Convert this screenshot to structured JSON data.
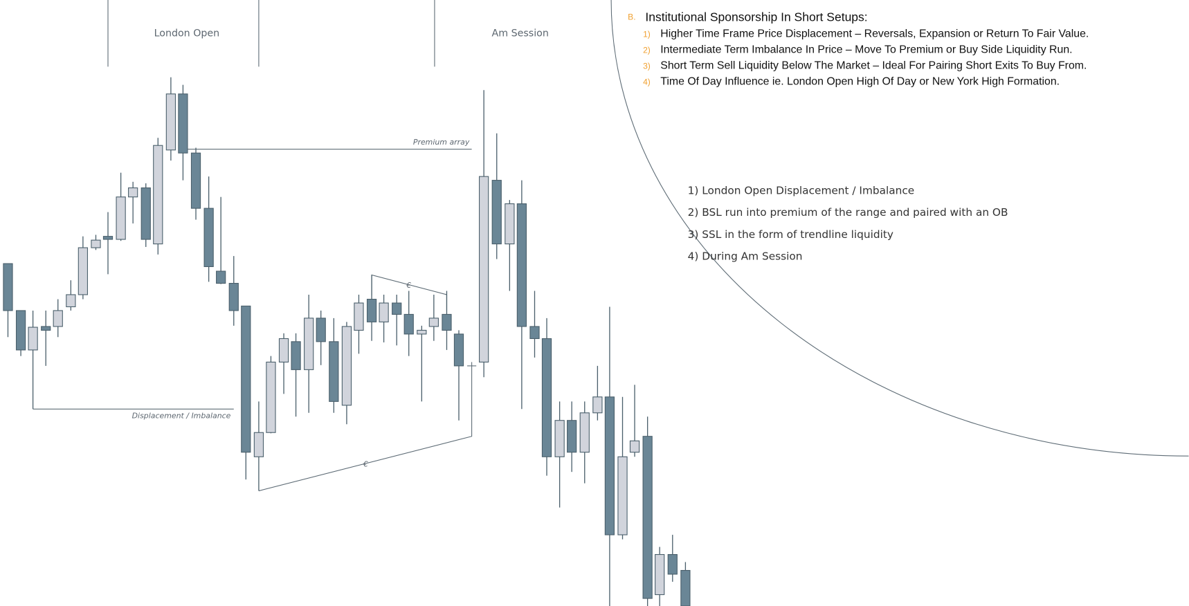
{
  "labels": {
    "london_open": "London Open",
    "am_session": "Am Session",
    "premium_array": "Premium array",
    "displacement": "Displacement / Imbalance",
    "euro_top": "€",
    "euro_bottom": "€"
  },
  "setups": {
    "marker": "B.",
    "title": "Institutional Sponsorship In Short Setups:",
    "items": [
      {
        "number": "1)",
        "text": "Higher Time Frame Price Displacement – Reversals, Expansion or Return To Fair Value."
      },
      {
        "number": "2)",
        "text": "Intermediate Term Imbalance In Price – Move To Premium or Buy Side Liquidity Run."
      },
      {
        "number": "3)",
        "text": "Short Term Sell Liquidity Below The Market – Ideal For Pairing Short Exits To Buy From."
      },
      {
        "number": "4)",
        "text": "Time Of Day Influence ie. London Open High Of Day or New York High Formation."
      }
    ]
  },
  "notes": [
    "1) London Open Displacement / Imbalance",
    "2) BSL run into premium of the range and paired with an OB",
    "3) SSL in the form of trendline liquidity",
    "4) During Am Session"
  ]
}
